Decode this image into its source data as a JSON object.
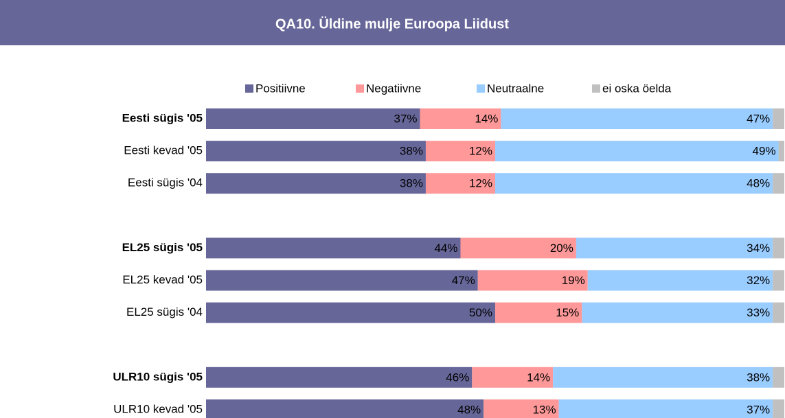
{
  "chart_data": {
    "type": "stacked_barh",
    "title": "QA10. Üldine mulje Euroopa Liidust",
    "categories": [
      "Eesti sügis '05",
      "Eesti kevad '05",
      "Eesti sügis '04",
      null,
      "EL25 sügis '05",
      "EL25 kevad '05",
      "EL25 sügis '04",
      null,
      "ULR10 sügis '05",
      "ULR10 kevad '05"
    ],
    "series": [
      {
        "name": "Positiivne",
        "color": "#666699",
        "values": [
          37,
          38,
          38,
          null,
          44,
          47,
          50,
          null,
          46,
          48
        ],
        "value_labels": [
          "37%",
          "38%",
          "38%",
          null,
          "44%",
          "47%",
          "50%",
          null,
          "46%",
          "48%"
        ]
      },
      {
        "name": "Negatiivne",
        "color": "#ff9999",
        "values": [
          14,
          12,
          12,
          null,
          20,
          19,
          15,
          null,
          14,
          13
        ],
        "value_labels": [
          "14%",
          "12%",
          "12%",
          null,
          "20%",
          "19%",
          "15%",
          null,
          "14%",
          "13%"
        ]
      },
      {
        "name": "Neutraalne",
        "color": "#99ccff",
        "values": [
          47,
          49,
          48,
          null,
          34,
          32,
          33,
          null,
          38,
          37
        ],
        "value_labels": [
          "47%",
          "49%",
          "48%",
          null,
          "34%",
          "32%",
          "33%",
          null,
          "38%",
          "37%"
        ]
      },
      {
        "name": "ei oska öelda",
        "color": "#c0c0c0",
        "values": [
          2,
          1,
          2,
          null,
          2,
          2,
          2,
          null,
          2,
          2
        ]
      }
    ],
    "xlim": [
      0,
      100
    ],
    "legend": "top"
  }
}
